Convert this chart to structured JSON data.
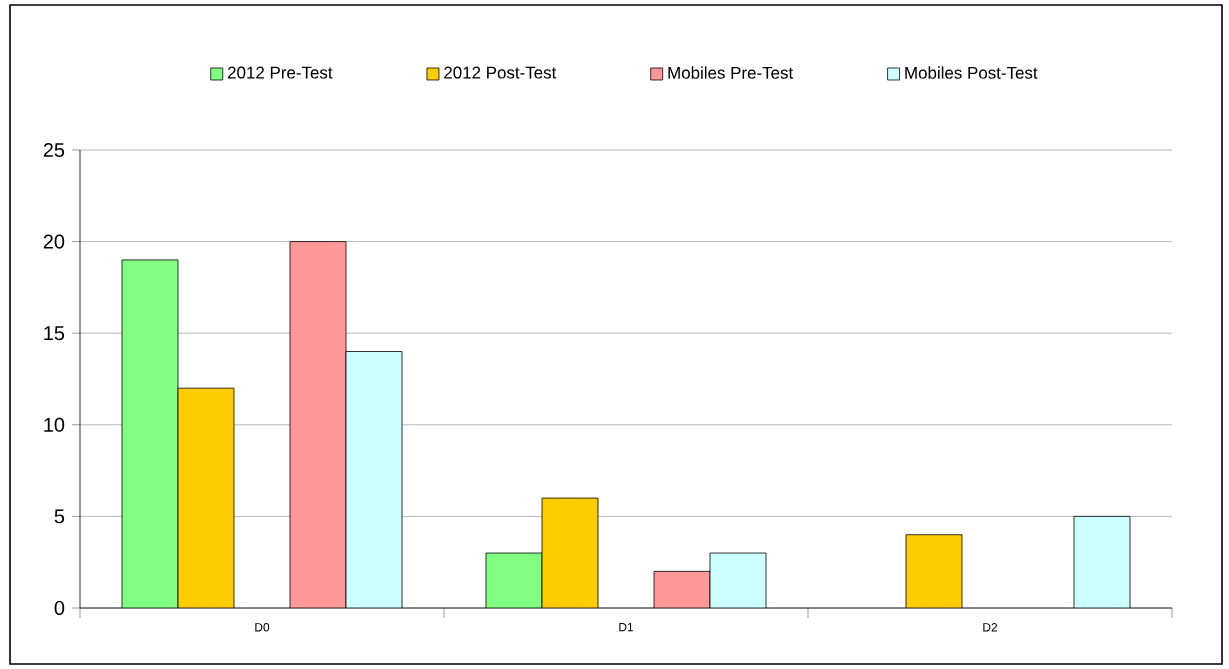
{
  "chart_data": {
    "type": "bar",
    "categories": [
      "D0",
      "D1",
      "D2"
    ],
    "series": [
      {
        "name": "2012 Pre-Test",
        "color": "#80ff80",
        "values": [
          19,
          3,
          null
        ]
      },
      {
        "name": "2012 Post-Test",
        "color": "#ffcc00",
        "values": [
          12,
          6,
          4
        ]
      },
      {
        "name": "Mobiles Pre-Test",
        "color": "#ff9999",
        "values": [
          20,
          2,
          null
        ]
      },
      {
        "name": "Mobiles Post-Test",
        "color": "#ccffff",
        "values": [
          14,
          3,
          5
        ]
      }
    ],
    "ylim": [
      0,
      25
    ],
    "yticks": [
      0,
      5,
      10,
      15,
      20,
      25
    ],
    "grid": "y",
    "legend": "top"
  }
}
